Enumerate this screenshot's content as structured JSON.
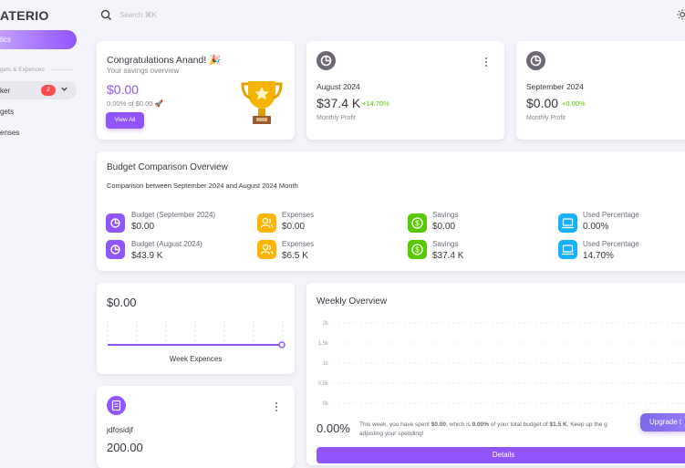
{
  "sidebar": {
    "brand": "ATERIO",
    "active_item": "tics",
    "section_title": "gets & Expences",
    "tracker_label": "ker",
    "tracker_badge": "2",
    "items": [
      "gets",
      "enses"
    ]
  },
  "header": {
    "search_placeholder": "Search ⌘K"
  },
  "congrats": {
    "title": "Congratulations Anand! 🎉",
    "subtitle": "Your savings overview",
    "amount": "$0.00",
    "progress": "0.00% of $0.00 🚀",
    "button": "View All"
  },
  "profit_cards": [
    {
      "month": "August 2024",
      "value": "$37.4 K",
      "change": "+14.70%",
      "label": "Monthly Profit"
    },
    {
      "month": "September 2024",
      "value": "$0.00",
      "change": "+0.00%",
      "label": "Monthly Profit"
    }
  ],
  "budget": {
    "title": "Budget Comparison Overview",
    "subtitle": "Comparison between September 2024 and August 2024 Month",
    "rows": [
      [
        {
          "label": "Budget (September 2024)",
          "value": "$0.00",
          "icon": "pie-chart-icon",
          "color": "#9155fd"
        },
        {
          "label": "Expenses",
          "value": "$0.00",
          "icon": "users-icon",
          "color": "#ffb400"
        },
        {
          "label": "Savings",
          "value": "$0.00",
          "icon": "dollar-icon",
          "color": "#56ca00"
        },
        {
          "label": "Used Percentage",
          "value": "0.00%",
          "icon": "laptop-icon",
          "color": "#16b1ff"
        }
      ],
      [
        {
          "label": "Budget (August 2024)",
          "value": "$43.9 K",
          "icon": "pie-chart-icon",
          "color": "#9155fd"
        },
        {
          "label": "Expenses",
          "value": "$6.5 K",
          "icon": "users-icon",
          "color": "#ffb400"
        },
        {
          "label": "Savings",
          "value": "$37.4 K",
          "icon": "dollar-icon",
          "color": "#56ca00"
        },
        {
          "label": "Used Percentage",
          "value": "14.70%",
          "icon": "laptop-icon",
          "color": "#16b1ff"
        }
      ]
    ]
  },
  "week_card": {
    "amount": "$0.00",
    "label": "Week Expences"
  },
  "item_card": {
    "name": "jdfosidjf",
    "amount": "200.00"
  },
  "weekly": {
    "title": "Weekly Overview",
    "percent": "0.00%",
    "message_1": "This week, you have spent ",
    "spent": "$0.00",
    "message_2": ", which is ",
    "pct": "0.00%",
    "message_3": " of your total budget of ",
    "budget": "$1.5 K",
    "message_4": ". Keep up the g",
    "message_line2": "adjusting your spending!",
    "details_button": "Details",
    "upgrade_button": "Upgrade t"
  },
  "chart_data": {
    "type": "bar",
    "categories": [],
    "values": [],
    "yticks": [
      "2k",
      "1.5k",
      "1k",
      "0.5k",
      "0k"
    ],
    "ylim": [
      0,
      2000
    ],
    "grid": true
  }
}
